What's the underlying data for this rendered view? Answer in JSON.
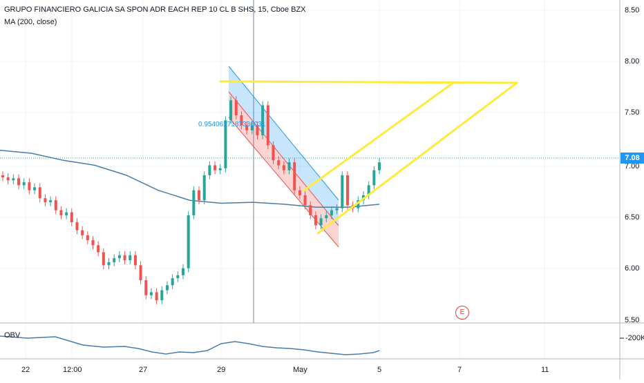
{
  "header": {
    "title": "GRUPO FINANCIERO GALICIA SA SPON ADR EACH REP 10 CL B SHS, 15, Cboe BZX",
    "ma_label": "MA (200, close)"
  },
  "indicator": {
    "obv_label": "OBV",
    "obv_tick": "-200K"
  },
  "price_axis": {
    "ticks": [
      "8.50",
      "8.00",
      "7.50",
      "7.00",
      "6.50",
      "6.00",
      "5.50"
    ],
    "current_price": "7.08"
  },
  "time_axis": {
    "ticks": [
      "22",
      "12:00",
      "27",
      "29",
      "May",
      "5",
      "7",
      "11"
    ]
  },
  "drawing": {
    "channel_value_label": "0.9540617187336031"
  },
  "event_marker": {
    "label": "E"
  },
  "colors": {
    "up": "#26a69a",
    "down": "#ef5350",
    "ma": "#4a7ba7",
    "drawing": "#ffeb3b",
    "accent": "#2196f3"
  },
  "chart_data": {
    "type": "candlestick",
    "ylim": [
      5.5,
      8.6
    ],
    "ma_line": [
      7.2,
      7.17,
      7.1,
      7.05,
      6.95,
      6.8,
      6.7,
      6.67,
      6.68,
      6.66,
      6.63,
      6.63,
      6.66
    ],
    "candles": [
      [
        6.95,
        6.93
      ],
      [
        6.93,
        6.9
      ],
      [
        6.9,
        6.92
      ],
      [
        6.92,
        6.85
      ],
      [
        6.85,
        6.88
      ],
      [
        6.88,
        6.8
      ],
      [
        6.8,
        6.83
      ],
      [
        6.83,
        6.72
      ],
      [
        6.72,
        6.68
      ],
      [
        6.68,
        6.7
      ],
      [
        6.7,
        6.6
      ],
      [
        6.6,
        6.55
      ],
      [
        6.55,
        6.58
      ],
      [
        6.58,
        6.48
      ],
      [
        6.48,
        6.4
      ],
      [
        6.4,
        6.35
      ],
      [
        6.35,
        6.3
      ],
      [
        6.3,
        6.25
      ],
      [
        6.25,
        6.18
      ],
      [
        6.18,
        6.05
      ],
      [
        6.05,
        6.08
      ],
      [
        6.08,
        6.12
      ],
      [
        6.12,
        6.15
      ],
      [
        6.15,
        6.1
      ],
      [
        6.1,
        6.15
      ],
      [
        6.15,
        6.05
      ],
      [
        6.05,
        5.9
      ],
      [
        5.9,
        5.75
      ],
      [
        5.75,
        5.78
      ],
      [
        5.78,
        5.7
      ],
      [
        5.7,
        5.8
      ],
      [
        5.8,
        5.85
      ],
      [
        5.85,
        5.92
      ],
      [
        5.92,
        5.95
      ],
      [
        5.95,
        6.02
      ],
      [
        6.02,
        6.55
      ],
      [
        6.55,
        6.8
      ],
      [
        6.8,
        6.7
      ],
      [
        6.7,
        6.95
      ],
      [
        6.95,
        7.05
      ],
      [
        7.05,
        7.0
      ],
      [
        7.0,
        7.02
      ],
      [
        7.02,
        7.5
      ],
      [
        7.5,
        7.7
      ],
      [
        7.7,
        7.55
      ],
      [
        7.55,
        7.45
      ],
      [
        7.45,
        7.4
      ],
      [
        7.4,
        7.45
      ],
      [
        7.45,
        7.35
      ],
      [
        7.35,
        7.65
      ],
      [
        7.65,
        7.25
      ],
      [
        7.25,
        7.1
      ],
      [
        7.1,
        7.05
      ],
      [
        7.05,
        7.0
      ],
      [
        7.0,
        7.08
      ],
      [
        7.08,
        6.8
      ],
      [
        6.8,
        6.75
      ],
      [
        6.75,
        6.65
      ],
      [
        6.65,
        6.55
      ],
      [
        6.55,
        6.45
      ],
      [
        6.45,
        6.52
      ],
      [
        6.52,
        6.55
      ],
      [
        6.55,
        6.6
      ],
      [
        6.6,
        6.62
      ],
      [
        6.62,
        6.95
      ],
      [
        6.95,
        6.65
      ],
      [
        6.65,
        6.62
      ],
      [
        6.62,
        6.7
      ],
      [
        6.7,
        6.75
      ],
      [
        6.75,
        6.85
      ],
      [
        6.85,
        7.0
      ],
      [
        7.0,
        7.08
      ]
    ]
  }
}
